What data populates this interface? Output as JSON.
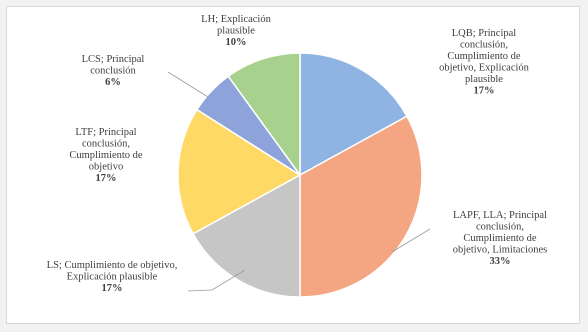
{
  "chart_data": {
    "type": "pie",
    "title": "",
    "slices": [
      {
        "name": "LQB; Principal conclusión, Cumplimiento de objetivo, Explicación plausible",
        "label_lines": [
          "LQB; Principal",
          "conclusión,",
          "Cumplimiento de",
          "objetivo, Explicación",
          "plausible"
        ],
        "value": 17,
        "value_label": "17%",
        "color": "#8fb4e3"
      },
      {
        "name": "LAPF, LLA; Principal conclusión, Cumplimiento de objetivo, Limitaciones",
        "label_lines": [
          "LAPF, LLA; Principal",
          "conclusión,",
          "Cumplimiento de",
          "objetivo, Limitaciones"
        ],
        "value": 33,
        "value_label": "33%",
        "color": "#f4a582"
      },
      {
        "name": "LS; Cumplimiento de objetivo, Explicación plausible",
        "label_lines": [
          "LS; Cumplimiento de objetivo,",
          "Explicación plausible"
        ],
        "value": 17,
        "value_label": "17%",
        "color": "#c6c6c6"
      },
      {
        "name": "LTF; Principal conclusión, Cumplimiento de objetivo",
        "label_lines": [
          "LTF; Principal",
          "conclusión,",
          "Cumplimiento de",
          "objetivo"
        ],
        "value": 17,
        "value_label": "17%",
        "color": "#ffd966"
      },
      {
        "name": "LCS; Principal conclusión",
        "label_lines": [
          "LCS; Principal",
          "conclusión"
        ],
        "value": 6,
        "value_label": "6%",
        "color": "#8da3d9"
      },
      {
        "name": "LH; Explicación plausible",
        "label_lines": [
          "LH; Explicación",
          "plausible"
        ],
        "value": 10,
        "value_label": "10%",
        "color": "#a9d18e"
      }
    ]
  }
}
